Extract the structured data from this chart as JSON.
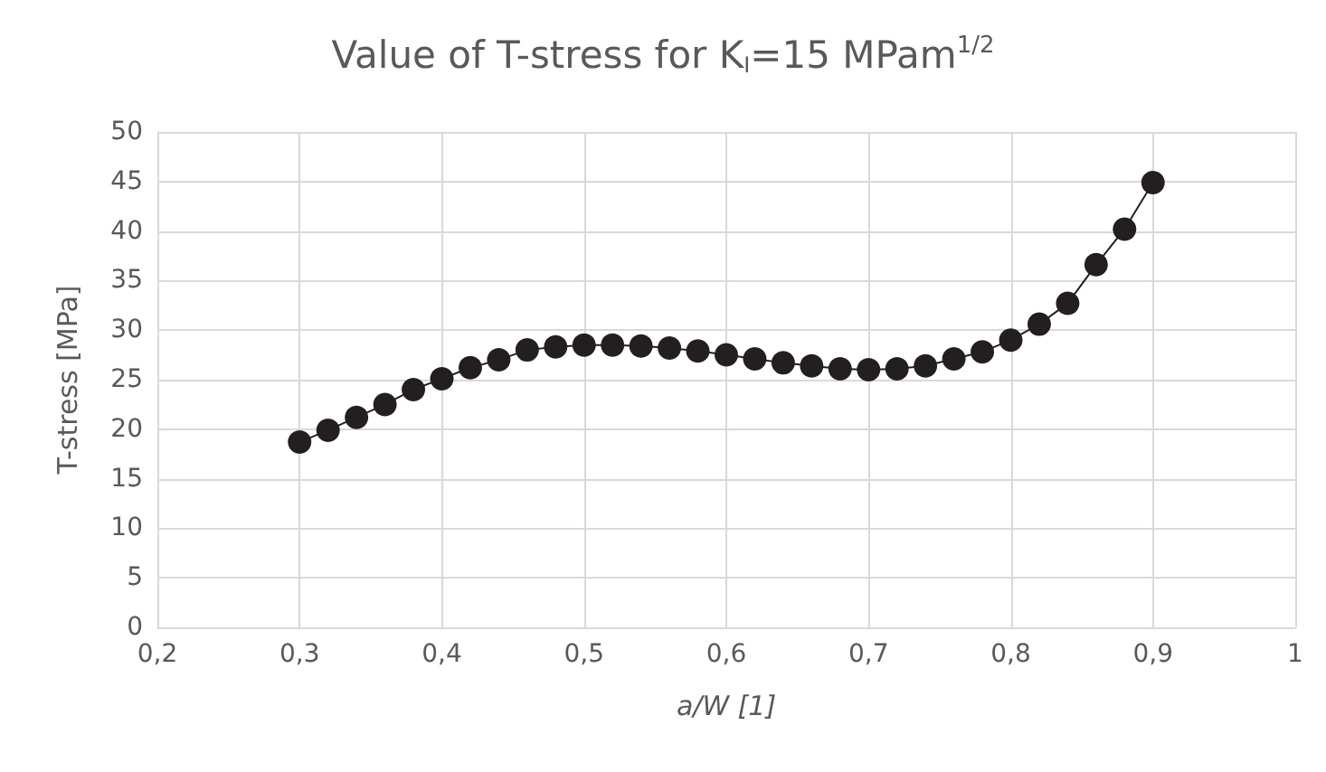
{
  "chart_data": {
    "type": "line",
    "title": "Value of T-stress for K$_{I}$=15 MPam$^{1/2}$",
    "xlabel": "a/W [1]",
    "ylabel": "T-stress [MPa]",
    "x": [
      0.3,
      0.32,
      0.34,
      0.36,
      0.38,
      0.4,
      0.42,
      0.44,
      0.46,
      0.48,
      0.5,
      0.52,
      0.54,
      0.56,
      0.58,
      0.6,
      0.62,
      0.64,
      0.66,
      0.68,
      0.7,
      0.72,
      0.74,
      0.76,
      0.78,
      0.8,
      0.82,
      0.84,
      0.86,
      0.88,
      0.9
    ],
    "series": [
      {
        "color": "#231f20",
        "values": [
          18.7,
          19.9,
          21.2,
          22.5,
          24.0,
          25.1,
          26.2,
          27.0,
          28.0,
          28.3,
          28.5,
          28.5,
          28.4,
          28.2,
          27.9,
          27.5,
          27.1,
          26.7,
          26.4,
          26.1,
          26.0,
          26.1,
          26.4,
          27.1,
          27.8,
          29.0,
          30.6,
          32.7,
          36.6,
          40.2,
          44.9
        ]
      }
    ],
    "xlim": [
      0.2,
      1
    ],
    "xticks": [
      {
        "value": 0.2,
        "label": "0,2"
      },
      {
        "value": 0.3,
        "label": "0,3"
      },
      {
        "value": 0.4,
        "label": "0,4"
      },
      {
        "value": 0.5,
        "label": "0,5"
      },
      {
        "value": 0.6,
        "label": "0,6"
      },
      {
        "value": 0.7,
        "label": "0,7"
      },
      {
        "value": 0.8,
        "label": "0,8"
      },
      {
        "value": 0.9,
        "label": "0,9"
      },
      {
        "value": 1,
        "label": "1"
      }
    ],
    "ylim": [
      0,
      50
    ],
    "yticks": [
      0,
      5,
      10,
      15,
      20,
      25,
      30,
      35,
      40,
      45,
      50
    ],
    "grid": true,
    "marker": "circle",
    "line_style": "solid"
  }
}
